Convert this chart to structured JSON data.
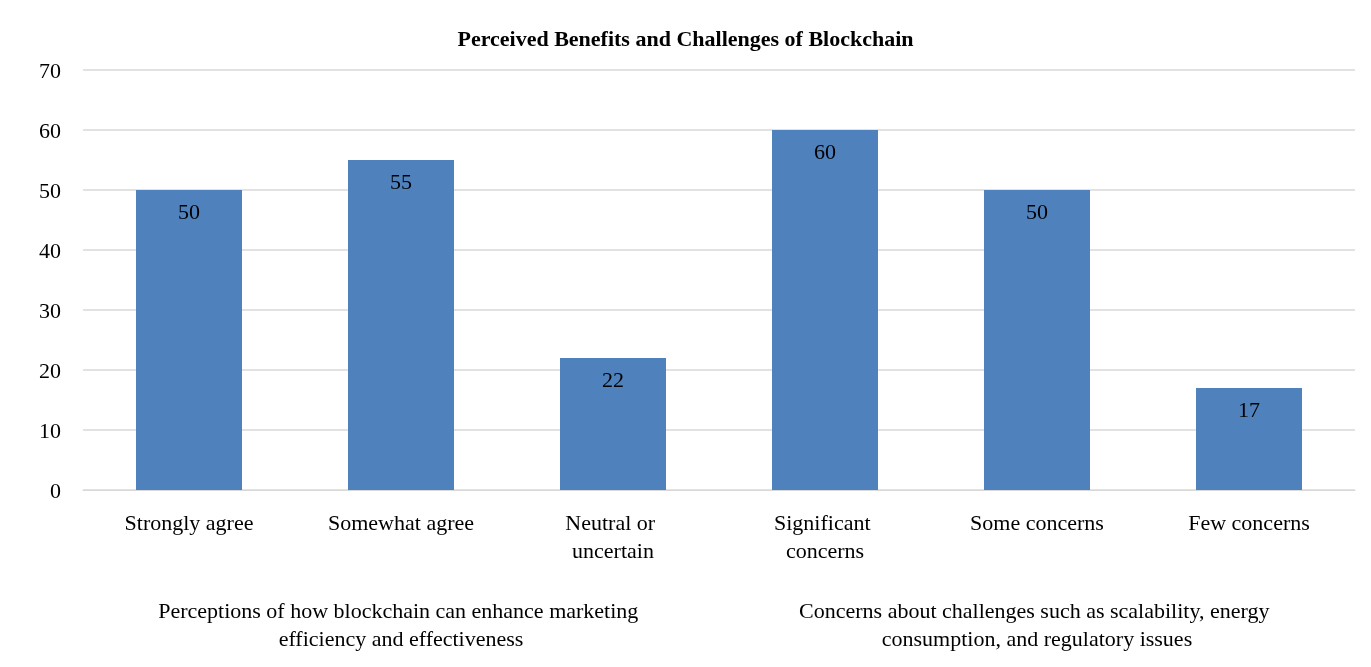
{
  "chart_data": {
    "type": "bar",
    "title": "Perceived Benefits and Challenges of Blockchain",
    "categories": [
      "Strongly agree",
      "Somewhat agree",
      "Neutral or uncertain",
      "Significant concerns",
      "Some concerns",
      "Few concerns"
    ],
    "values": [
      50,
      55,
      22,
      60,
      50,
      17
    ],
    "color": "#4f81bd",
    "ylim": [
      0,
      70
    ],
    "yticks": [
      0,
      10,
      20,
      30,
      40,
      50,
      60,
      70
    ],
    "grid": "y",
    "data_labels": true,
    "annotations": [
      "Perceptions of how blockchain can enhance marketing efficiency and effectiveness",
      "Concerns about challenges such as scalability, energy consumption, and regulatory issues"
    ]
  }
}
